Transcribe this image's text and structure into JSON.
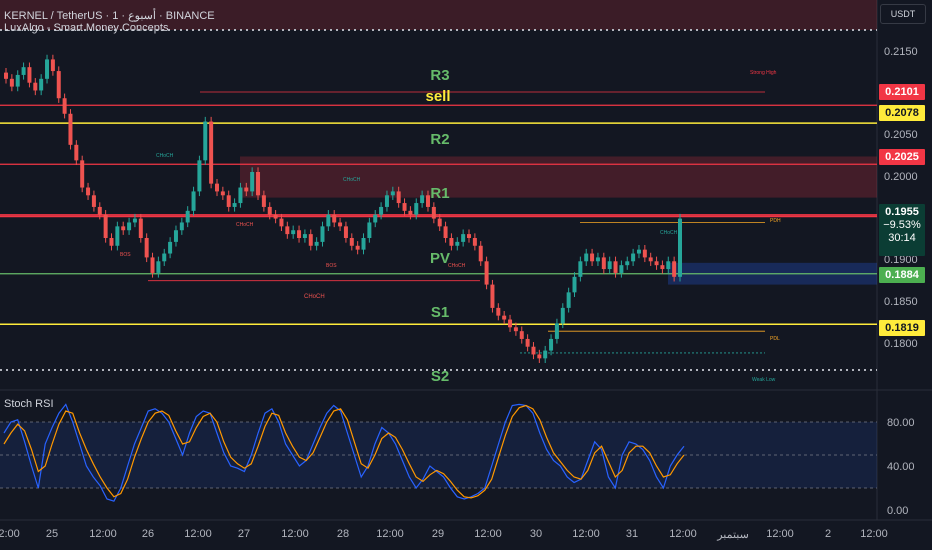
{
  "header": {
    "symbol": "KERNEL / TetherUS · 1 · أسبوع · BINANCE",
    "indicator": "LuxAlgo - Smart Money Concepts"
  },
  "currency_button": "USDT",
  "price_axis": {
    "ticks": [
      "0.2150",
      "0.2050",
      "0.2000",
      "0.1900",
      "0.1850",
      "0.1800"
    ]
  },
  "price_labels": {
    "r3_line": "0.2101",
    "sell_line": "0.2078",
    "r2_line": "0.2025",
    "last_price": "0.1955",
    "change": "−9.53%",
    "countdown": "30:14",
    "pv_line": "0.1884",
    "s1_line": "0.1819"
  },
  "pivots": {
    "r3": "R3",
    "sell": "sell",
    "r2": "R2",
    "r1": "R1",
    "pv": "PV",
    "s1": "S1",
    "s2": "S2"
  },
  "annotations": {
    "strong_high": "Strong High",
    "weak_low": "Weak Low",
    "pdh": "PDH",
    "pdl": "PDL",
    "choch": "CHoCH",
    "bos": "BOS"
  },
  "rsi": {
    "title": "Stoch RSI",
    "ticks": [
      "80.00",
      "40.00",
      "0.00"
    ]
  },
  "time_axis": {
    "labels": [
      "12:00",
      "25",
      "12:00",
      "26",
      "12:00",
      "27",
      "12:00",
      "28",
      "12:00",
      "29",
      "12:00",
      "30",
      "12:00",
      "31",
      "12:00",
      "سبتمبر",
      "12:00",
      "2",
      "12:00"
    ]
  },
  "colors": {
    "background": "#131722",
    "up": "#26a69a",
    "down": "#ef5350",
    "resistance": "#f23645",
    "sell": "#ffeb3b",
    "pivot": "#66bb6a",
    "pdh": "#f9a825",
    "rsi_k": "#2962ff",
    "rsi_d": "#ff9800"
  },
  "chart_data": {
    "type": "candlestick",
    "ylim": [
      0.176,
      0.2185
    ],
    "levels": {
      "r3": 0.2101,
      "sell": 0.2078,
      "r2": 0.2025,
      "pv": 0.1884,
      "s1": 0.1819
    },
    "close_series": [
      0.2135,
      0.2125,
      0.214,
      0.215,
      0.213,
      0.212,
      0.2135,
      0.216,
      0.2145,
      0.211,
      0.209,
      0.205,
      0.203,
      0.1995,
      0.1985,
      0.197,
      0.196,
      0.193,
      0.192,
      0.1945,
      0.194,
      0.195,
      0.1955,
      0.193,
      0.1905,
      0.1885,
      0.19,
      0.191,
      0.1925,
      0.194,
      0.195,
      0.1965,
      0.199,
      0.203,
      0.208,
      0.2,
      0.199,
      0.1985,
      0.197,
      0.1975,
      0.1995,
      0.199,
      0.2015,
      0.1985,
      0.197,
      0.196,
      0.1955,
      0.1945,
      0.1935,
      0.194,
      0.193,
      0.1935,
      0.192,
      0.1925,
      0.1945,
      0.196,
      0.195,
      0.1945,
      0.193,
      0.192,
      0.1915,
      0.193,
      0.195,
      0.196,
      0.197,
      0.1985,
      0.199,
      0.1975,
      0.1965,
      0.196,
      0.1975,
      0.1985,
      0.197,
      0.1955,
      0.1945,
      0.193,
      0.192,
      0.1925,
      0.1935,
      0.193,
      0.192,
      0.19,
      0.187,
      0.184,
      0.183,
      0.1825,
      0.1815,
      0.181,
      0.18,
      0.179,
      0.178,
      0.1775,
      0.1785,
      0.18,
      0.182,
      0.184,
      0.186,
      0.188,
      0.19,
      0.191,
      0.19,
      0.1905,
      0.189,
      0.19,
      0.1885,
      0.1895,
      0.19,
      0.191,
      0.1915,
      0.1905,
      0.19,
      0.1895,
      0.189,
      0.19,
      0.188,
      0.1955
    ],
    "stoch_k": [
      70,
      80,
      82,
      62,
      40,
      20,
      60,
      75,
      88,
      96,
      80,
      60,
      40,
      30,
      22,
      10,
      8,
      20,
      40,
      60,
      75,
      90,
      92,
      88,
      80,
      65,
      50,
      70,
      85,
      90,
      88,
      70,
      52,
      40,
      38,
      35,
      50,
      70,
      88,
      92,
      80,
      60,
      50,
      40,
      45,
      60,
      75,
      88,
      95,
      90,
      70,
      50,
      30,
      40,
      60,
      75,
      70,
      60,
      45,
      30,
      20,
      28,
      40,
      35,
      30,
      20,
      12,
      10,
      12,
      15,
      20,
      40,
      60,
      80,
      95,
      96,
      95,
      88,
      70,
      55,
      45,
      40,
      30,
      25,
      28,
      45,
      62,
      55,
      30,
      20,
      50,
      62,
      60,
      55,
      45,
      30,
      20,
      40,
      50,
      58
    ],
    "stoch_d": [
      60,
      70,
      78,
      72,
      55,
      35,
      40,
      60,
      78,
      90,
      88,
      70,
      55,
      42,
      30,
      20,
      12,
      15,
      28,
      48,
      65,
      80,
      88,
      90,
      86,
      72,
      60,
      62,
      75,
      85,
      88,
      80,
      62,
      48,
      42,
      38,
      42,
      58,
      76,
      88,
      86,
      70,
      58,
      48,
      45,
      52,
      66,
      80,
      90,
      92,
      82,
      62,
      42,
      38,
      50,
      65,
      70,
      66,
      55,
      42,
      30,
      26,
      32,
      36,
      33,
      26,
      18,
      12,
      11,
      13,
      18,
      28,
      48,
      68,
      85,
      93,
      95,
      92,
      82,
      66,
      52,
      44,
      36,
      30,
      28,
      36,
      52,
      58,
      44,
      30,
      36,
      52,
      58,
      58,
      52,
      40,
      30,
      32,
      42,
      50
    ]
  }
}
